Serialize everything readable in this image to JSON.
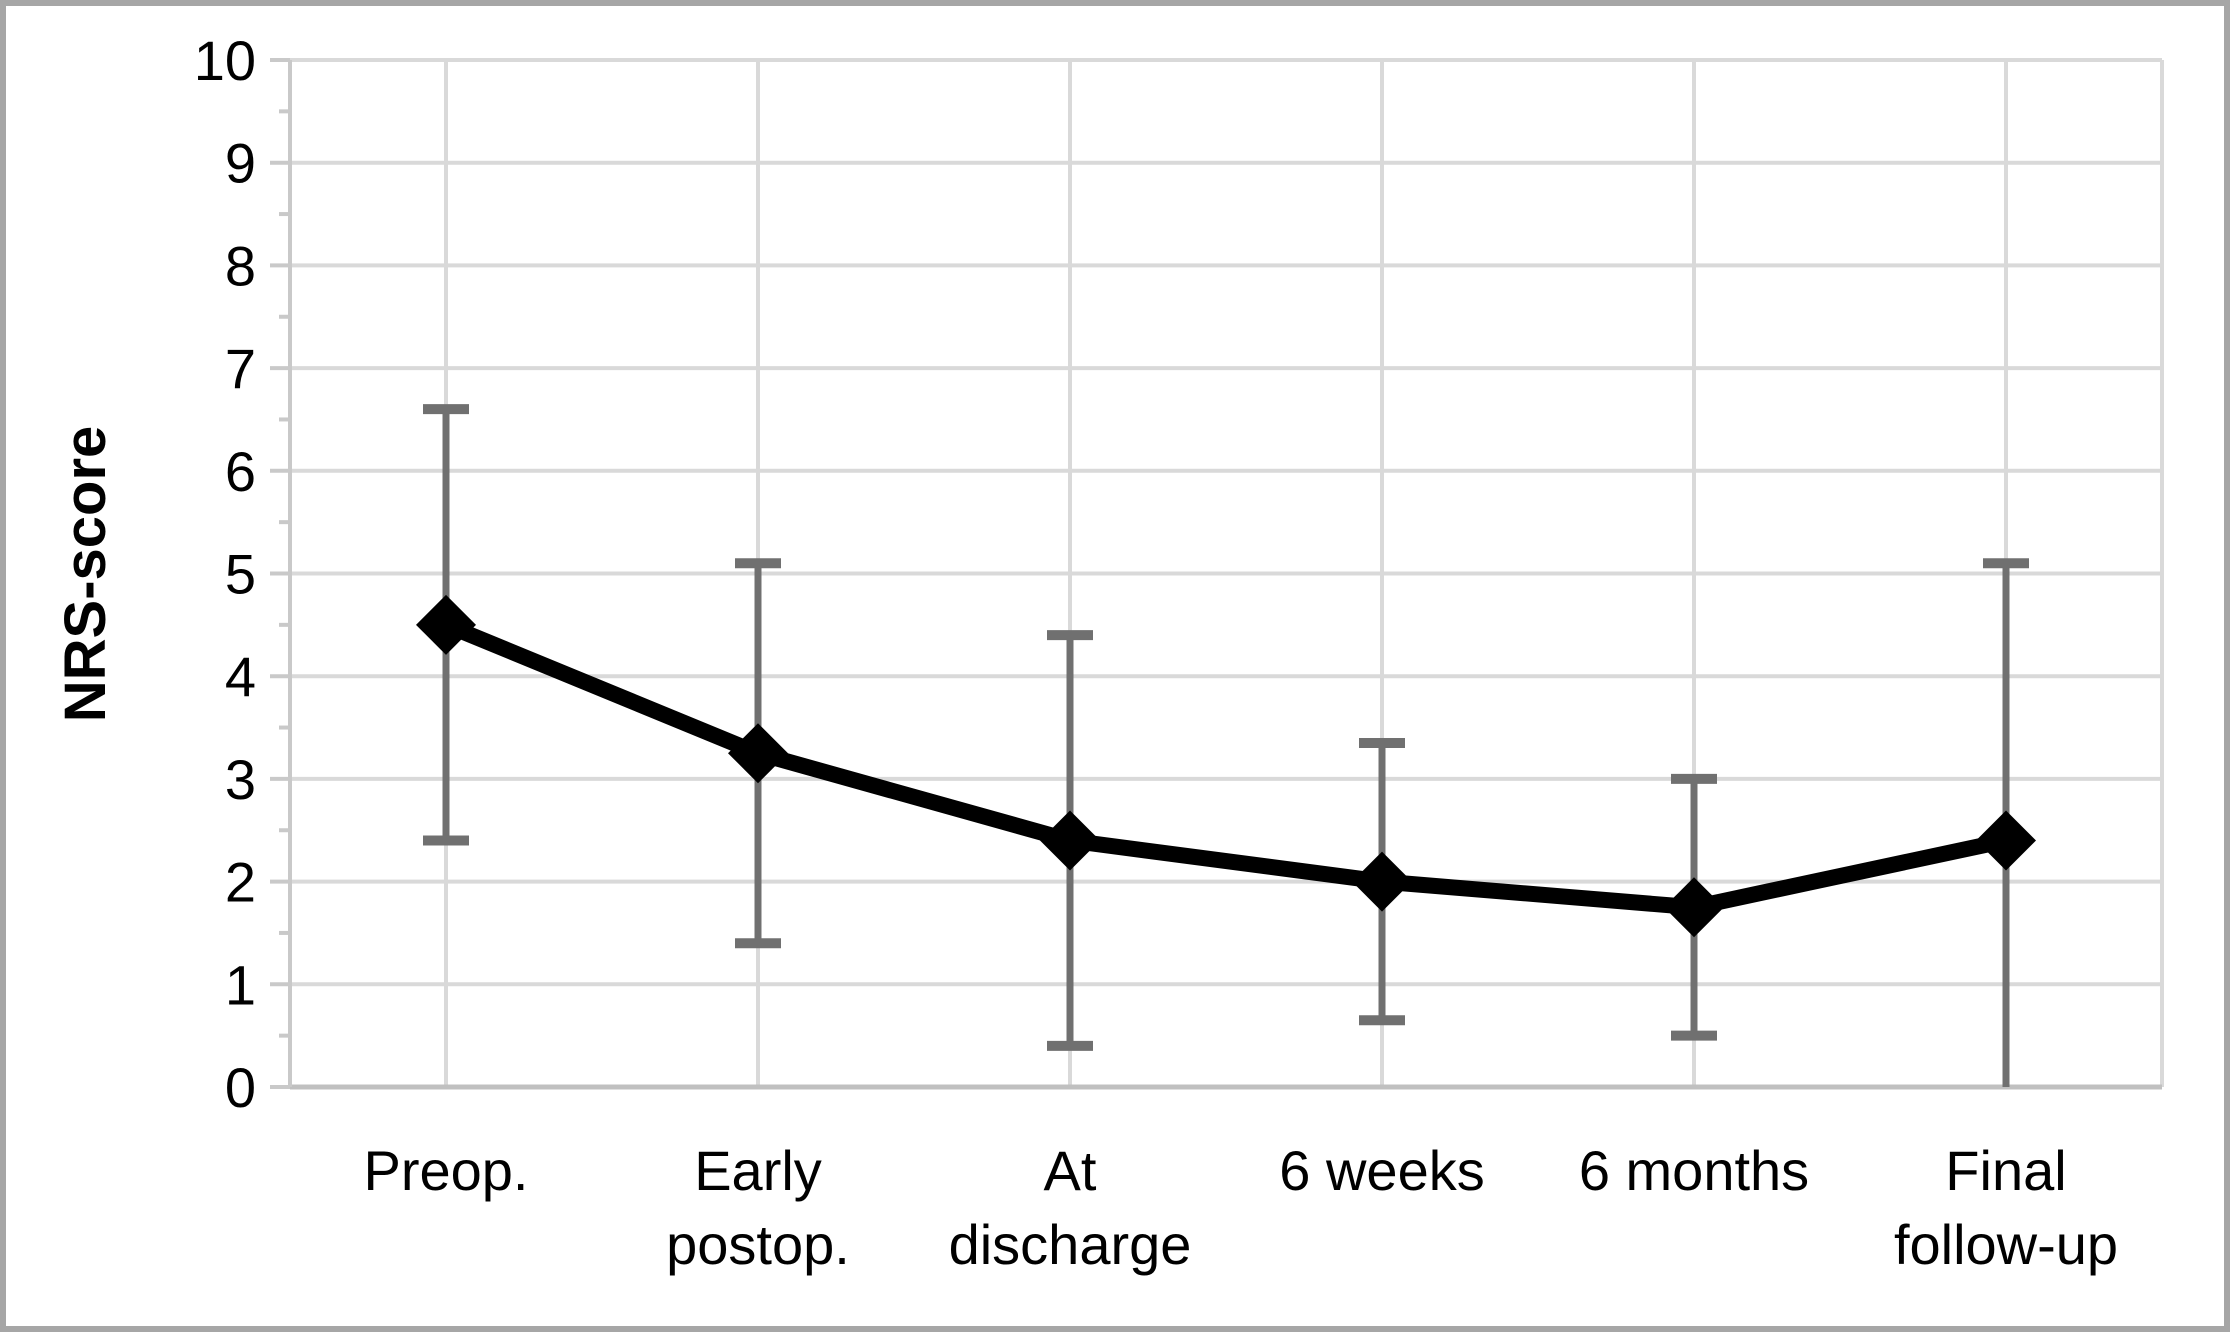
{
  "chart_data": {
    "type": "line",
    "title": "",
    "xlabel": "",
    "ylabel": "NRS-score",
    "ylim": [
      0,
      10
    ],
    "y_major_step": 1,
    "y_minor_step": 0.5,
    "grid": "horizontal-major and vertical-category gridlines, light gray",
    "legend_position": "none",
    "marker": "diamond",
    "categories": [
      "Preop.",
      "Early postop.",
      "At discharge",
      "6 weeks",
      "6 months",
      "Final follow-up"
    ],
    "category_label_lines": [
      [
        "Preop."
      ],
      [
        "Early",
        "postop."
      ],
      [
        "At",
        "discharge"
      ],
      [
        "6 weeks"
      ],
      [
        "6 months"
      ],
      [
        "Final",
        "follow-up"
      ]
    ],
    "y_tick_labels_top_to_bottom": [
      "10",
      "9",
      "8",
      "7",
      "6",
      "5",
      "4",
      "3",
      "2",
      "1",
      "0"
    ],
    "series": [
      {
        "name": "NRS-score",
        "values": [
          4.5,
          3.25,
          2.4,
          2.0,
          1.75,
          2.4
        ],
        "error_upper": [
          6.6,
          5.1,
          4.4,
          3.35,
          3.0,
          5.1
        ],
        "error_lower": [
          2.4,
          1.4,
          0.4,
          0.65,
          0.5,
          0.0
        ],
        "lower_cap_visible": [
          true,
          true,
          true,
          true,
          true,
          false
        ]
      }
    ],
    "colors": {
      "series_line": "#000000",
      "marker": "#000000",
      "error_bar": "#707070",
      "gridline": "#d9d9d9",
      "axis_line": "#c9c9c9",
      "zero_axis": "#c0c0c0",
      "frame": "#a6a6a6",
      "text": "#000000",
      "background": "#ffffff"
    }
  }
}
